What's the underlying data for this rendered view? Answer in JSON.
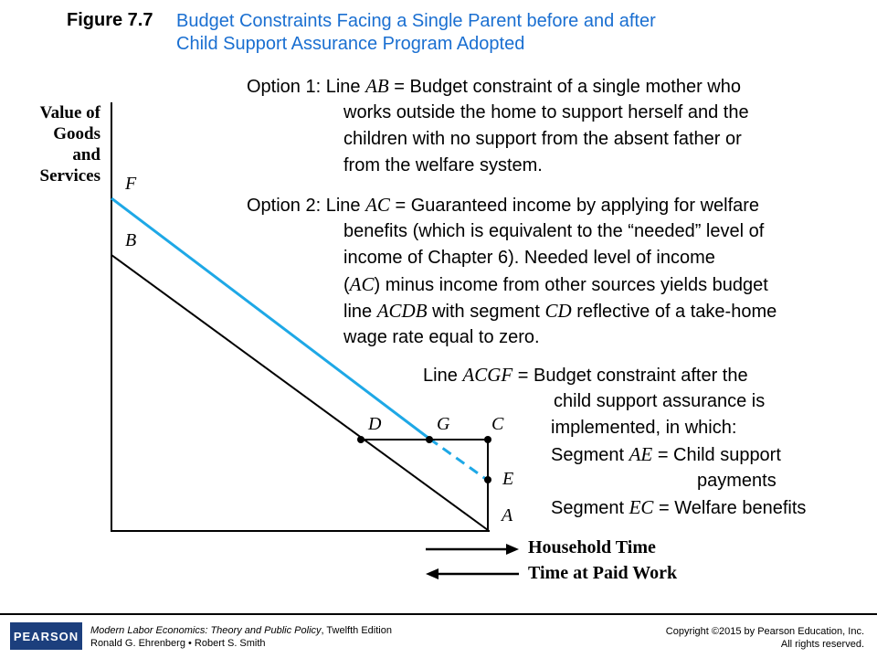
{
  "figure": {
    "label": "Figure 7.7",
    "title_line1": "Budget Constraints Facing a Single Parent before and after",
    "title_line2": "Child Support Assurance Program Adopted"
  },
  "option1": {
    "head_pre": "Option 1: Line ",
    "head_var": "AB",
    "head_post": " = Budget constraint of a single mother who",
    "lines": [
      "works outside the home to support herself and the",
      "children with no support from the absent father or",
      "from the welfare system."
    ]
  },
  "option2": {
    "head_pre": "Option 2: Line ",
    "head_var": "AC",
    "head_post": " = Guaranteed income by applying for welfare",
    "line1": "benefits (which is equivalent to the “needed” level of",
    "line2": "income of Chapter 6). Needed level of income",
    "line3_pre": "(",
    "line3_var": "AC",
    "line3_post": ") minus income from other sources yields budget",
    "line4_pre": "line ",
    "line4_var1": "ACDB",
    "line4_mid": " with segment ",
    "line4_var2": "CD",
    "line4_post": " reflective of a take-home",
    "line5": "wage rate equal to zero."
  },
  "line_acgf": {
    "head_pre": "Line ",
    "head_var": "ACGF",
    "head_post": " = Budget constraint after the",
    "line1": "child support assurance is",
    "line2": "implemented, in which:",
    "seg_ae_pre": "Segment ",
    "seg_ae_var": "AE",
    "seg_ae_post": " = Child support",
    "seg_ae_cont": "payments",
    "seg_ec_pre": "Segment ",
    "seg_ec_var": "EC",
    "seg_ec_post": " = Welfare benefits"
  },
  "axes": {
    "y_label": [
      "Value of",
      "Goods",
      "and",
      "Services"
    ],
    "x_label_1": "Household Time",
    "x_label_2": "Time at Paid Work"
  },
  "points": {
    "F": "F",
    "B": "B",
    "D": "D",
    "G": "G",
    "C": "C",
    "E": "E",
    "A": "A"
  },
  "colors": {
    "accent_blue": "#1a6fd1",
    "line_blue": "#1ea8e6",
    "black": "#000000",
    "logo_blue": "#1c3f7d"
  },
  "footer": {
    "logo": "PEARSON",
    "book_title": "Modern Labor Economics: Theory and Public Policy",
    "book_edition": ", Twelfth Edition",
    "authors": "Ronald G. Ehrenberg • Robert S. Smith",
    "copyright": "Copyright ©2015 by Pearson Education, Inc.",
    "rights": "All rights reserved."
  }
}
